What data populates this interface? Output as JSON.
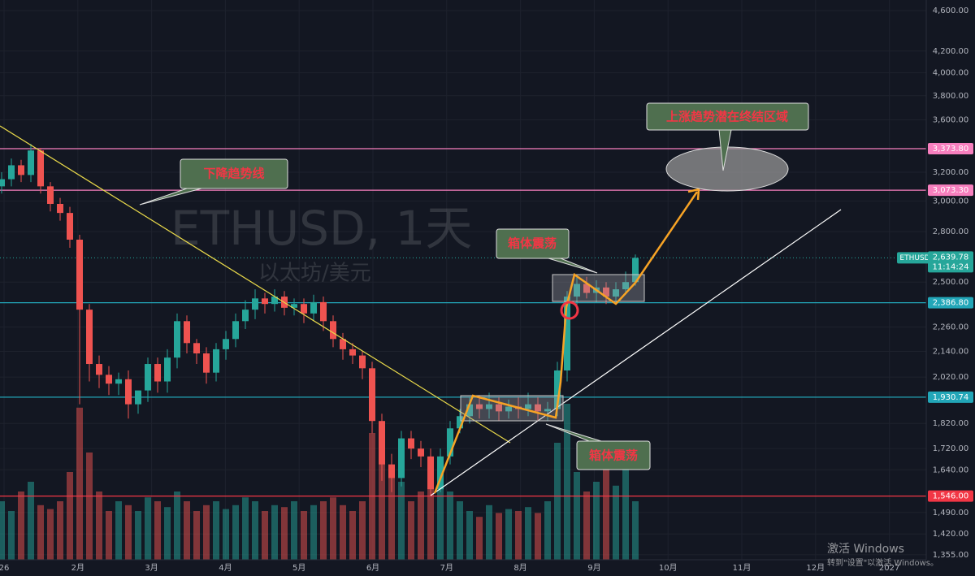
{
  "chart_data": {
    "type": "candlestick",
    "symbol": "ETHUSD",
    "watermark": "ETHUSD, 1天",
    "watermark_sub": "以太坊/美元",
    "log_scale": true,
    "grid": true,
    "up_color": "#26a69a",
    "down_color": "#ef5350",
    "ylim": [
      1340,
      4711
    ],
    "yticks": [
      {
        "value": 4600,
        "label": "4,600.00"
      },
      {
        "value": 4200,
        "label": "4,200.00"
      },
      {
        "value": 4000,
        "label": "4,000.00"
      },
      {
        "value": 3800,
        "label": "3,800.00"
      },
      {
        "value": 3600,
        "label": "3,600.00"
      },
      {
        "value": 3200,
        "label": "3,200.00"
      },
      {
        "value": 3000,
        "label": "3,000.00"
      },
      {
        "value": 2800,
        "label": "2,800.00"
      },
      {
        "value": 2500,
        "label": "2,500.00"
      },
      {
        "value": 2260,
        "label": "2,260.00"
      },
      {
        "value": 2140,
        "label": "2,140.00"
      },
      {
        "value": 2020,
        "label": "2,020.00"
      },
      {
        "value": 1820,
        "label": "1,820.00"
      },
      {
        "value": 1720,
        "label": "1,720.00"
      },
      {
        "value": 1640,
        "label": "1,640.00"
      },
      {
        "value": 1490,
        "label": "1,490.00"
      },
      {
        "value": 1420,
        "label": "1,420.00"
      },
      {
        "value": 1355,
        "label": "1,355.00"
      }
    ],
    "x_labels": [
      "26",
      "2月",
      "3月",
      "4月",
      "5月",
      "6月",
      "7月",
      "8月",
      "9月",
      "10月",
      "11月",
      "12月",
      "2027"
    ],
    "levels": [
      {
        "value": 3373.8,
        "label": "3,373.80",
        "color": "#f77fbe"
      },
      {
        "value": 3073.3,
        "label": "3,073.30",
        "color": "#f77fbe"
      },
      {
        "value": 2386.8,
        "label": "2,386.80",
        "color": "#22a6b8"
      },
      {
        "value": 1930.74,
        "label": "1,930.74",
        "color": "#22a6b8"
      },
      {
        "value": 1546,
        "label": "1,546.00",
        "color": "#f23645"
      }
    ],
    "last_price": {
      "value": 2639.78,
      "label": "2,639.78"
    },
    "countdown": "11:14:24",
    "open": [
      3100,
      3150,
      3250,
      3180,
      3360,
      3100,
      2980,
      2920,
      2750,
      2350,
      2080,
      2030,
      1990,
      2010,
      1900,
      1960,
      2080,
      2000,
      2110,
      2290,
      2180,
      2130,
      2040,
      2150,
      2200,
      2290,
      2350,
      2410,
      2380,
      2420,
      2360,
      2380,
      2330,
      2390,
      2290,
      2200,
      2150,
      2120,
      2060,
      1830,
      1660,
      1610,
      1760,
      1720,
      1690,
      1570,
      1690,
      1800,
      1850,
      1900,
      1880,
      1900,
      1870,
      1890,
      1880,
      1900,
      1870,
      1880,
      2050,
      2420,
      2490,
      2440,
      2470,
      2420,
      2460,
      2500
    ],
    "high": [
      3200,
      3300,
      3290,
      3410,
      3380,
      3130,
      3020,
      2960,
      2780,
      2380,
      2120,
      2070,
      2040,
      2050,
      1950,
      2110,
      2110,
      2150,
      2330,
      2320,
      2200,
      2160,
      2180,
      2240,
      2330,
      2400,
      2460,
      2440,
      2460,
      2450,
      2410,
      2410,
      2430,
      2420,
      2320,
      2230,
      2180,
      2140,
      2090,
      1860,
      1700,
      1790,
      1790,
      1750,
      1720,
      1720,
      1830,
      1880,
      1930,
      1940,
      1950,
      1930,
      1920,
      1930,
      1950,
      1930,
      1910,
      2090,
      2450,
      2540,
      2530,
      2510,
      2500,
      2500,
      2560,
      2660
    ],
    "low": [
      3050,
      3100,
      3130,
      3130,
      3050,
      2930,
      2870,
      2700,
      1900,
      2000,
      1970,
      1940,
      1940,
      1840,
      1860,
      1910,
      1950,
      1950,
      2060,
      2130,
      2080,
      1990,
      2000,
      2100,
      2160,
      2250,
      2300,
      2330,
      2340,
      2320,
      2320,
      2280,
      2290,
      2240,
      2160,
      2100,
      2080,
      2010,
      1780,
      1600,
      1560,
      1580,
      1680,
      1650,
      1546,
      1560,
      1660,
      1780,
      1820,
      1840,
      1840,
      1830,
      1840,
      1840,
      1850,
      1830,
      1830,
      1850,
      2000,
      2360,
      2410,
      2390,
      2380,
      2380,
      2430,
      2480
    ],
    "close": [
      3150,
      3250,
      3180,
      3360,
      3100,
      2980,
      2920,
      2750,
      2350,
      2080,
      2030,
      1990,
      2010,
      1900,
      1960,
      2080,
      2000,
      2110,
      2290,
      2180,
      2130,
      2040,
      2150,
      2200,
      2290,
      2350,
      2410,
      2380,
      2420,
      2360,
      2380,
      2330,
      2390,
      2290,
      2200,
      2150,
      2120,
      2060,
      1830,
      1660,
      1610,
      1760,
      1720,
      1690,
      1570,
      1690,
      1800,
      1850,
      1900,
      1880,
      1900,
      1870,
      1890,
      1880,
      1900,
      1870,
      1880,
      2050,
      2420,
      2490,
      2440,
      2470,
      2420,
      2460,
      2500,
      2639.78
    ],
    "volume_ylim": [
      0,
      100
    ],
    "volume": [
      30,
      25,
      35,
      40,
      28,
      26,
      30,
      45,
      78,
      55,
      35,
      25,
      30,
      28,
      25,
      32,
      30,
      27,
      35,
      30,
      25,
      28,
      30,
      26,
      28,
      32,
      30,
      25,
      28,
      27,
      30,
      25,
      28,
      30,
      32,
      28,
      25,
      30,
      65,
      70,
      45,
      40,
      30,
      35,
      38,
      42,
      35,
      30,
      25,
      22,
      28,
      24,
      26,
      25,
      27,
      24,
      30,
      60,
      80,
      45,
      35,
      40,
      55,
      38,
      60,
      30
    ],
    "annotations": [
      "下降趋势线",
      "箱体震荡",
      "箱体震荡",
      "上涨趋势潜在终结区域"
    ]
  },
  "os_overlay": {
    "title": "激活 Windows",
    "subtitle": "转到\"设置\"以激活 Windows。"
  }
}
